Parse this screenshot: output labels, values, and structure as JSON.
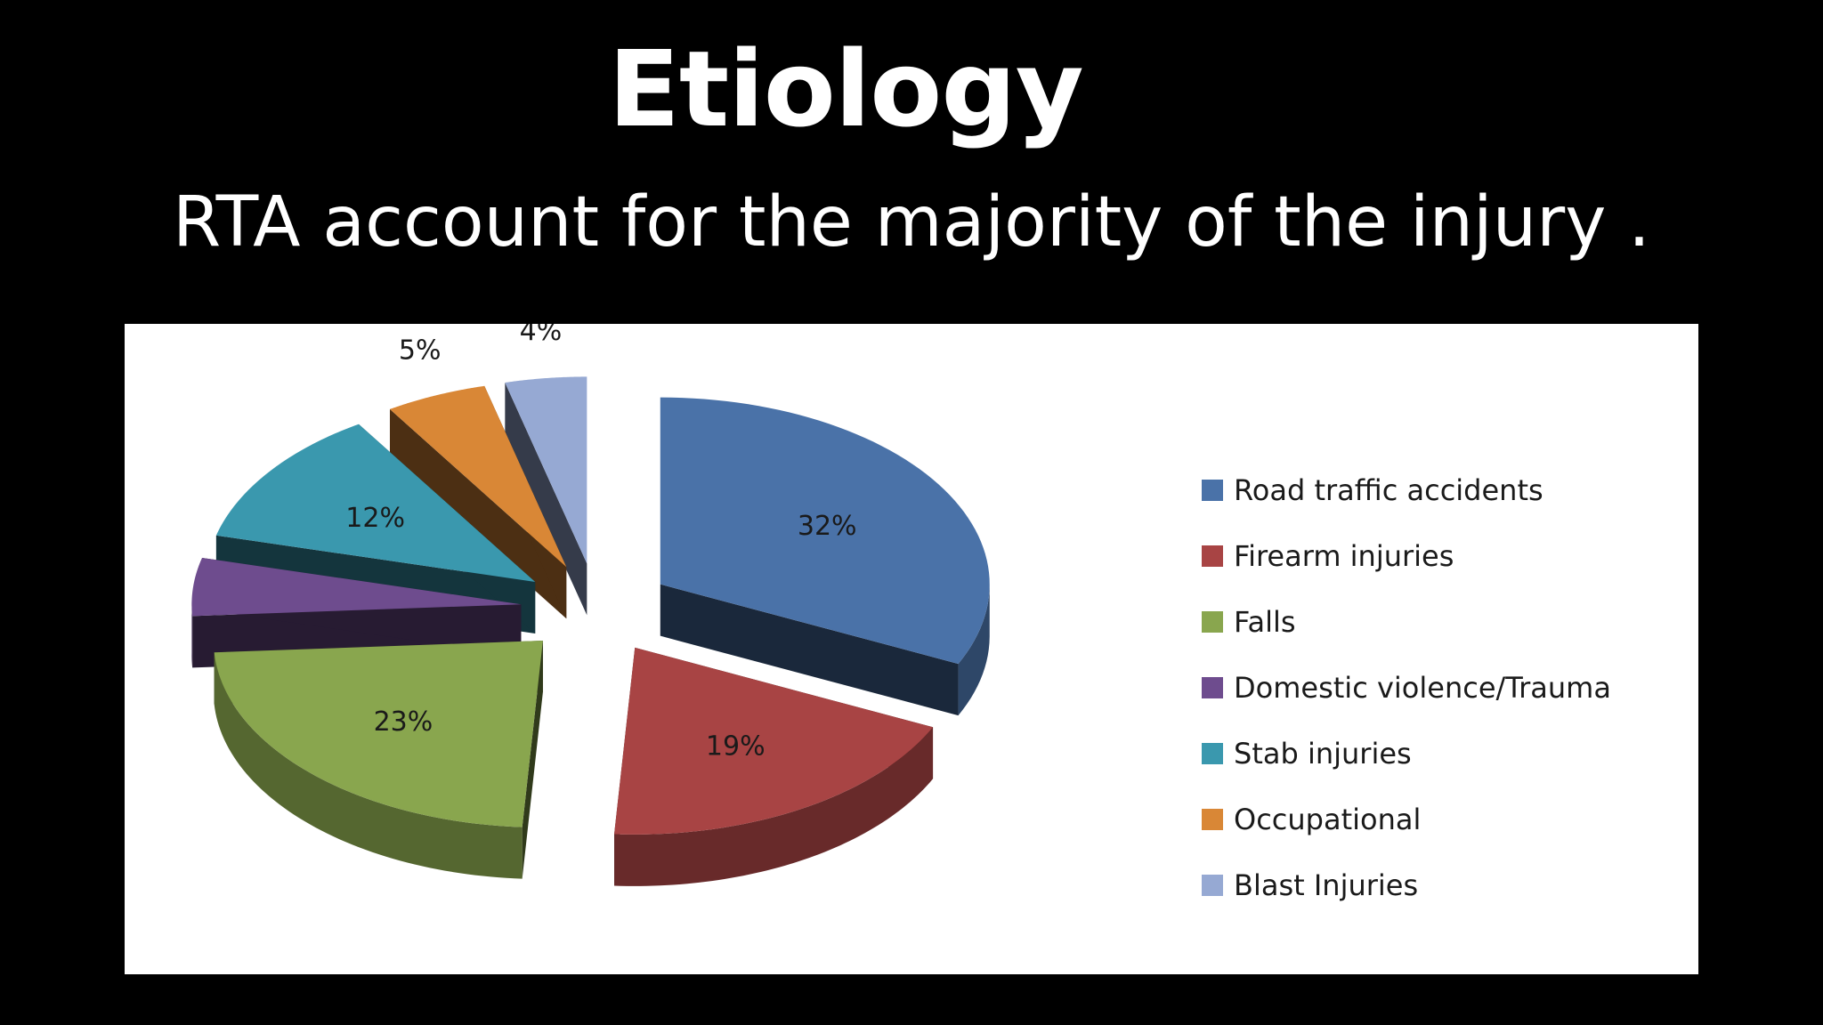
{
  "slide": {
    "title": "Etiology",
    "subtitle": "RTA account for  the majority of the injury ."
  },
  "chart_data": {
    "type": "pie",
    "style": "3d-exploded",
    "legend_position": "right",
    "slices": [
      {
        "name": "Road traffic accidents",
        "value": 32,
        "label": "32%",
        "color": "#4a72a8"
      },
      {
        "name": "Firearm injuries",
        "value": 19,
        "label": "19%",
        "color": "#a84444"
      },
      {
        "name": "Falls",
        "value": 23,
        "label": "23%",
        "color": "#89a64e"
      },
      {
        "name": "Domestic violence/Trauma",
        "value": 5,
        "label": "",
        "color": "#6e4c8e"
      },
      {
        "name": "Stab injuries",
        "value": 12,
        "label": "12%",
        "color": "#3a98ae"
      },
      {
        "name": "Occupational",
        "value": 5,
        "label": "5%",
        "color": "#d98736"
      },
      {
        "name": "Blast Injuries",
        "value": 4,
        "label": "4%",
        "color": "#96a9d3"
      }
    ]
  }
}
